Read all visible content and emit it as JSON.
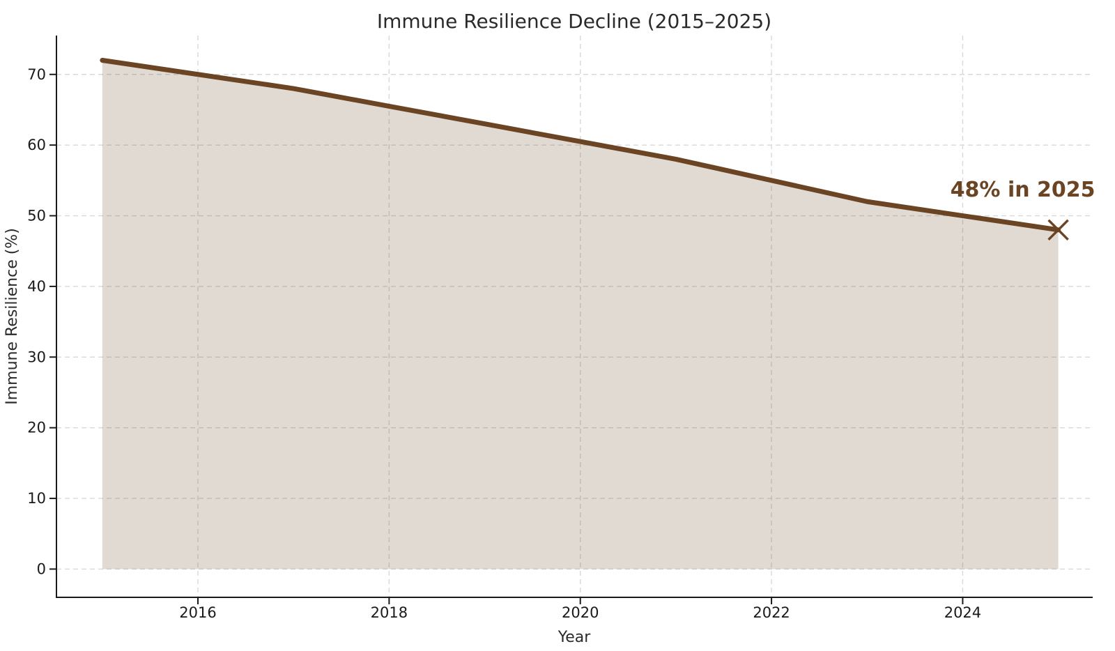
{
  "chart_data": {
    "type": "area",
    "title": "Immune Resilience Decline (2015–2025)",
    "xlabel": "Year",
    "ylabel": "Immune Resilience (%)",
    "x": [
      2015,
      2016,
      2017,
      2018,
      2019,
      2020,
      2021,
      2022,
      2023,
      2024,
      2025
    ],
    "series": [
      {
        "name": "Immune Resilience (%)",
        "values": [
          72,
          70,
          68,
          65.5,
          63,
          60.5,
          58,
          55,
          52,
          50,
          48
        ]
      }
    ],
    "xticks": [
      2016,
      2018,
      2020,
      2022,
      2024
    ],
    "yticks": [
      0,
      10,
      20,
      30,
      40,
      50,
      60,
      70
    ],
    "xlim": [
      2014.52,
      2025.36
    ],
    "ylim": [
      -4,
      75.5
    ],
    "grid": true,
    "grid_style": "dashed",
    "legend_position": "none",
    "annotation": {
      "text": "48% in 2025",
      "x": 2025,
      "y": 48
    },
    "end_marker": "x",
    "colors": {
      "line": "#6b4423",
      "fill": "#6b4423",
      "fill_opacity": 0.2,
      "annotation": "#6b4423",
      "grid": "#d9d9d9",
      "axis": "#1a1a1a",
      "tick_text": "#1a1a1a",
      "text": "#2a2a2a",
      "background": "#ffffff"
    }
  }
}
